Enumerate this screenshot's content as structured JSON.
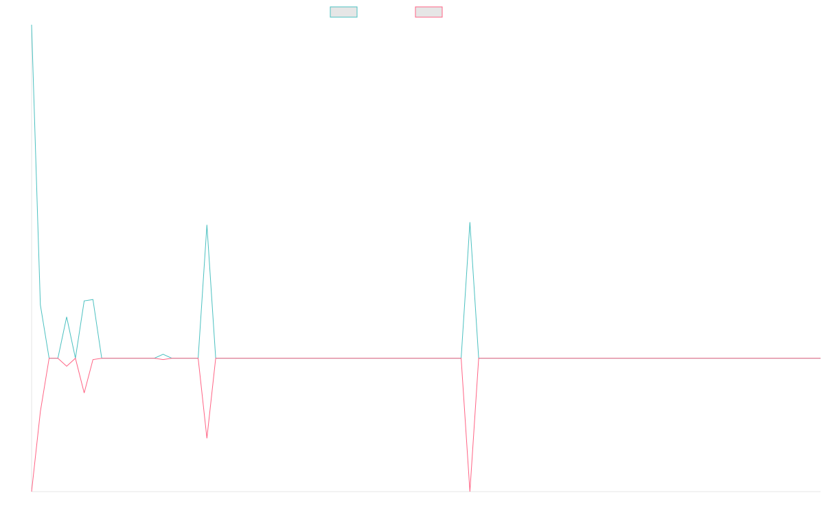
{
  "chart_data": {
    "type": "line",
    "title": "",
    "xlabel": "",
    "ylabel": "",
    "grid": false,
    "legend_position": "top-center",
    "x": [
      0,
      1,
      2,
      3,
      4,
      5,
      6,
      7,
      8,
      9,
      10,
      11,
      12,
      13,
      14,
      15,
      16,
      17,
      18,
      19,
      20,
      21,
      22,
      23,
      24,
      25,
      26,
      27,
      28,
      29,
      30,
      31,
      32,
      33,
      34,
      35,
      36,
      37,
      38,
      39,
      40,
      41,
      42,
      43,
      44,
      45,
      46,
      47,
      48,
      49,
      50,
      51,
      52,
      53,
      54,
      55,
      56,
      57,
      58,
      59,
      60,
      61,
      62,
      63,
      64,
      65,
      66,
      67,
      68,
      69,
      70,
      71,
      72,
      73,
      74,
      75,
      76,
      77,
      78,
      79,
      80,
      81,
      82,
      83,
      84,
      85,
      86,
      87,
      88,
      89,
      90
    ],
    "ylim": [
      -100,
      250
    ],
    "series": [
      {
        "name": "",
        "color": "#4bc0c0",
        "values": [
          250,
          40,
          0,
          0,
          31,
          0,
          43,
          44,
          0,
          0,
          0,
          0,
          0,
          0,
          0,
          3,
          0,
          0,
          0,
          0,
          100,
          0,
          0,
          0,
          0,
          0,
          0,
          0,
          0,
          0,
          0,
          0,
          0,
          0,
          0,
          0,
          0,
          0,
          0,
          0,
          0,
          0,
          0,
          0,
          0,
          0,
          0,
          0,
          0,
          0,
          102,
          0,
          0,
          0,
          0,
          0,
          0,
          0,
          0,
          0,
          0,
          0,
          0,
          0,
          0,
          0,
          0,
          0,
          0,
          0,
          0,
          0,
          0,
          0,
          0,
          0,
          0,
          0,
          0,
          0,
          0,
          0,
          0,
          0,
          0,
          0,
          0,
          0,
          0,
          0,
          0
        ]
      },
      {
        "name": "",
        "color": "#ff6384",
        "values": [
          -100,
          -40,
          0,
          0,
          -6,
          0,
          -26,
          -1,
          0,
          0,
          0,
          0,
          0,
          0,
          0,
          -1,
          0,
          0,
          0,
          0,
          -60,
          0,
          0,
          0,
          0,
          0,
          0,
          0,
          0,
          0,
          0,
          0,
          0,
          0,
          0,
          0,
          0,
          0,
          0,
          0,
          0,
          0,
          0,
          0,
          0,
          0,
          0,
          0,
          0,
          0,
          -100,
          0,
          0,
          0,
          0,
          0,
          0,
          0,
          0,
          0,
          0,
          0,
          0,
          0,
          0,
          0,
          0,
          0,
          0,
          0,
          0,
          0,
          0,
          0,
          0,
          0,
          0,
          0,
          0,
          0,
          0,
          0,
          0,
          0,
          0,
          0,
          0,
          0,
          0,
          0,
          0
        ]
      }
    ]
  }
}
